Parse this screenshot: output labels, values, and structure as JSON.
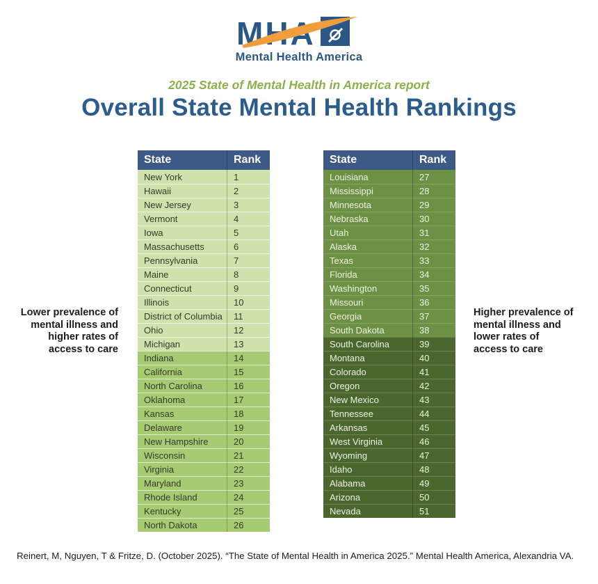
{
  "logo": {
    "acronym": "MHA",
    "wordmark": "Mental Health America"
  },
  "header": {
    "subtitle": "2025 State of Mental Health in America report",
    "title": "Overall State Mental Health Rankings"
  },
  "annotations": {
    "left": "Lower prevalence of\nmental illness and\nhigher rates of\naccess to care",
    "right": "Higher prevalence of\nmental illness and\nlower rates of\naccess to care"
  },
  "tables": [
    {
      "columns": {
        "state": "State",
        "rank": "Rank"
      },
      "tiers": [
        {
          "min": 1,
          "max": 13,
          "bg": "#cfe2ab",
          "fg": "#333b2b"
        },
        {
          "min": 14,
          "max": 26,
          "bg": "#a7cb72",
          "fg": "#333b2b"
        }
      ],
      "rows": [
        {
          "state": "New York",
          "rank": 1
        },
        {
          "state": "Hawaii",
          "rank": 2
        },
        {
          "state": "New Jersey",
          "rank": 3
        },
        {
          "state": "Vermont",
          "rank": 4
        },
        {
          "state": "Iowa",
          "rank": 5
        },
        {
          "state": "Massachusetts",
          "rank": 6
        },
        {
          "state": "Pennsylvania",
          "rank": 7
        },
        {
          "state": "Maine",
          "rank": 8
        },
        {
          "state": "Connecticut",
          "rank": 9
        },
        {
          "state": "Illinois",
          "rank": 10
        },
        {
          "state": "District of Columbia",
          "rank": 11
        },
        {
          "state": "Ohio",
          "rank": 12
        },
        {
          "state": "Michigan",
          "rank": 13
        },
        {
          "state": "Indiana",
          "rank": 14
        },
        {
          "state": "California",
          "rank": 15
        },
        {
          "state": "North Carolina",
          "rank": 16
        },
        {
          "state": "Oklahoma",
          "rank": 17
        },
        {
          "state": "Kansas",
          "rank": 18
        },
        {
          "state": "Delaware",
          "rank": 19
        },
        {
          "state": "New Hampshire",
          "rank": 20
        },
        {
          "state": "Wisconsin",
          "rank": 21
        },
        {
          "state": "Virginia",
          "rank": 22
        },
        {
          "state": "Maryland",
          "rank": 23
        },
        {
          "state": "Rhode Island",
          "rank": 24
        },
        {
          "state": "Kentucky",
          "rank": 25
        },
        {
          "state": "North Dakota",
          "rank": 26
        }
      ]
    },
    {
      "columns": {
        "state": "State",
        "rank": "Rank"
      },
      "tiers": [
        {
          "min": 27,
          "max": 38,
          "bg": "#6d9144",
          "fg": "#edf1e2"
        },
        {
          "min": 39,
          "max": 51,
          "bg": "#4b672e",
          "fg": "#edf1e2"
        }
      ],
      "rows": [
        {
          "state": "Louisiana",
          "rank": 27
        },
        {
          "state": "Mississippi",
          "rank": 28
        },
        {
          "state": "Minnesota",
          "rank": 29
        },
        {
          "state": "Nebraska",
          "rank": 30
        },
        {
          "state": "Utah",
          "rank": 31
        },
        {
          "state": "Alaska",
          "rank": 32
        },
        {
          "state": "Texas",
          "rank": 33
        },
        {
          "state": "Florida",
          "rank": 34
        },
        {
          "state": "Washington",
          "rank": 35
        },
        {
          "state": "Missouri",
          "rank": 36
        },
        {
          "state": "Georgia",
          "rank": 37
        },
        {
          "state": "South Dakota",
          "rank": 38
        },
        {
          "state": "South Carolina",
          "rank": 39
        },
        {
          "state": "Montana",
          "rank": 40
        },
        {
          "state": "Colorado",
          "rank": 41
        },
        {
          "state": "Oregon",
          "rank": 42
        },
        {
          "state": "New Mexico",
          "rank": 43
        },
        {
          "state": "Tennessee",
          "rank": 44
        },
        {
          "state": "Arkansas",
          "rank": 45
        },
        {
          "state": "West Virginia",
          "rank": 46
        },
        {
          "state": "Wyoming",
          "rank": 47
        },
        {
          "state": "Idaho",
          "rank": 48
        },
        {
          "state": "Alabama",
          "rank": 49
        },
        {
          "state": "Arizona",
          "rank": 50
        },
        {
          "state": "Nevada",
          "rank": 51
        }
      ]
    }
  ],
  "footer": {
    "citation": "Reinert, M, Nguyen, T & Fritze, D. (October 2025). “The State of Mental Health in America 2025.” Mental Health America, Alexandria VA."
  },
  "colors": {
    "header_bg": "#3c5a85",
    "title_blue": "#2c5c8e",
    "subtitle_green": "#8db04d",
    "logo_blue": "#2b5786",
    "swoosh_orange": "#f09d3d"
  }
}
